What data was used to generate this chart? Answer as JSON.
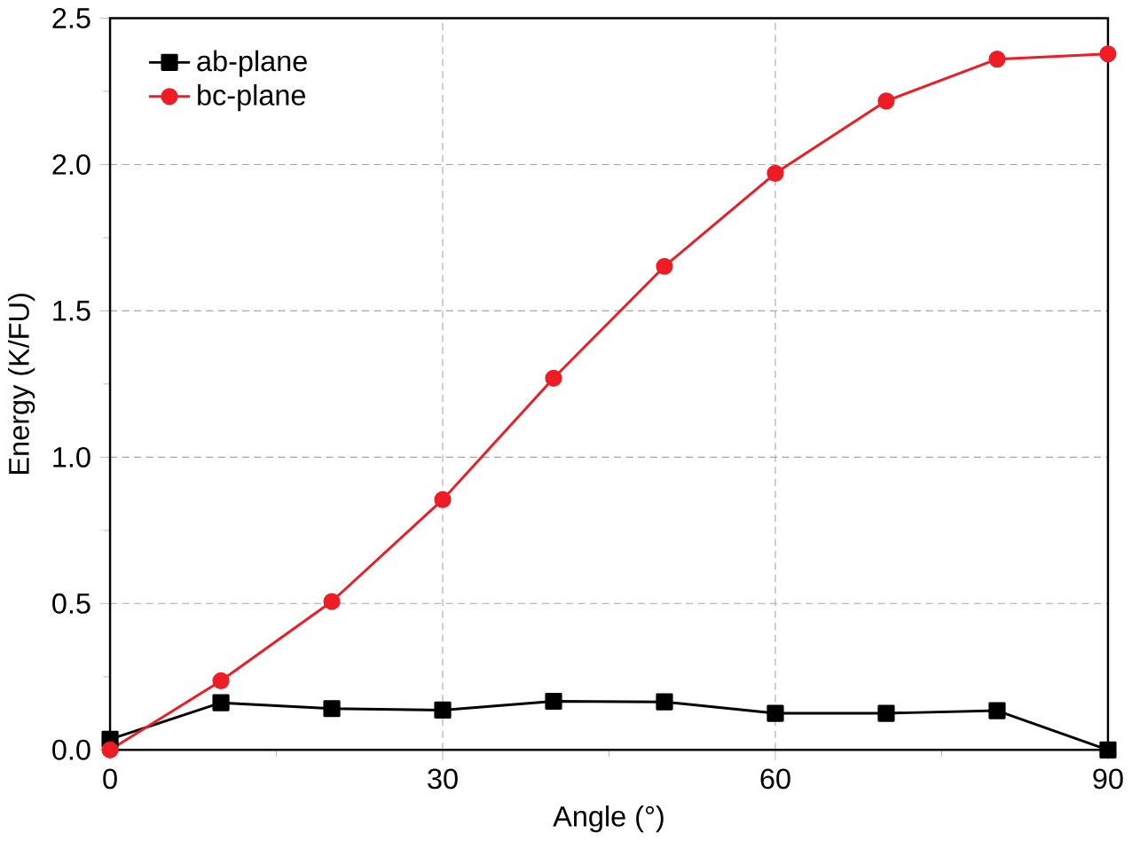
{
  "chart_data": {
    "type": "line",
    "xlabel": "Angle (°)",
    "ylabel": "Energy (K/FU)",
    "x": [
      0,
      10,
      20,
      30,
      40,
      50,
      60,
      70,
      80,
      90
    ],
    "series": [
      {
        "name": "ab-plane",
        "color": "#000000",
        "marker": "square",
        "values": [
          0.036,
          0.161,
          0.141,
          0.136,
          0.166,
          0.164,
          0.125,
          0.125,
          0.134,
          0.0
        ]
      },
      {
        "name": "bc-plane",
        "color": "#ee1c25",
        "marker": "circle",
        "values": [
          0.0,
          0.236,
          0.507,
          0.855,
          1.27,
          1.652,
          1.97,
          2.217,
          2.36,
          2.378
        ]
      }
    ],
    "xlim": [
      0,
      90
    ],
    "xticks": [
      0,
      30,
      60,
      90
    ],
    "ylim": [
      0,
      2.5
    ],
    "yticks": [
      {
        "value": 0,
        "label": "0.0"
      },
      {
        "value": 0.5,
        "label": "0.5"
      },
      {
        "value": 1,
        "label": "1.0"
      },
      {
        "value": 1.5,
        "label": "1.5"
      },
      {
        "value": 2,
        "label": "2.0"
      },
      {
        "value": 2.5,
        "label": "2.5"
      }
    ],
    "grid": true,
    "legend": "top left",
    "line_style": "solid"
  }
}
